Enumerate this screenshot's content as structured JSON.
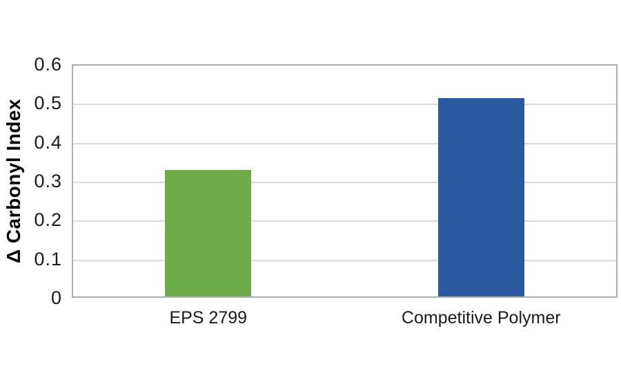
{
  "chart_data": {
    "type": "bar",
    "categories": [
      "EPS 2799",
      "Competitive Polymer"
    ],
    "values": [
      0.325,
      0.51
    ],
    "bar_colors": [
      "#6EAC4A",
      "#2B59A0"
    ],
    "title": "",
    "xlabel": "",
    "ylabel": "Δ Carbonyl Index",
    "ylim": [
      0,
      0.6
    ],
    "yticks": [
      0,
      0.1,
      0.2,
      0.3,
      0.4,
      0.5,
      0.6
    ],
    "ytick_labels": [
      "0",
      "0.1",
      "0.2",
      "0.3",
      "0.4",
      "0.5",
      "0.6"
    ],
    "grid": true,
    "legend_position": "none",
    "colors": {
      "background": "#FFFFFF",
      "gridline": "#D9D9D9",
      "frame": "#ADADAD",
      "tick_text": "#1A1A1A",
      "category_text": "#1A1A1A",
      "axis_title_text": "#000000"
    }
  }
}
